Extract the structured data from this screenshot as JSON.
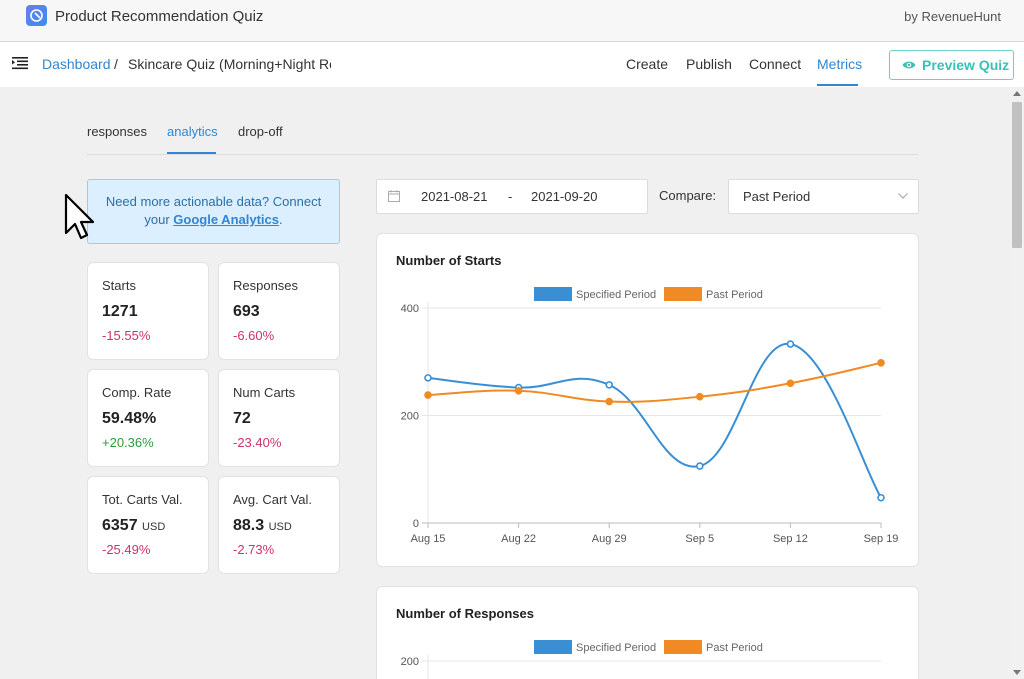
{
  "app": {
    "title": "Product Recommendation Quiz",
    "by": "by RevenueHunt"
  },
  "breadcrumb": {
    "root": "Dashboard",
    "separator": "/",
    "current": "Skincare Quiz (Morning+Night Routine)"
  },
  "nav": {
    "items": [
      {
        "label": "Create",
        "active": false
      },
      {
        "label": "Publish",
        "active": false
      },
      {
        "label": "Connect",
        "active": false
      },
      {
        "label": "Metrics",
        "active": true
      }
    ],
    "preview_label": "Preview Quiz"
  },
  "sub_tabs": [
    {
      "label": "responses",
      "active": false
    },
    {
      "label": "analytics",
      "active": true
    },
    {
      "label": "drop-off",
      "active": false
    }
  ],
  "ga_notice": {
    "text_before": "Need more actionable data? Connect your ",
    "link": "Google Analytics",
    "text_after": "."
  },
  "stats": [
    {
      "label": "Starts",
      "value": "1271",
      "unit": "",
      "change": "-15.55%",
      "trend": "negative"
    },
    {
      "label": "Responses",
      "value": "693",
      "unit": "",
      "change": "-6.60%",
      "trend": "negative"
    },
    {
      "label": "Comp. Rate",
      "value": "59.48%",
      "unit": "",
      "change": "+20.36%",
      "trend": "positive"
    },
    {
      "label": "Num Carts",
      "value": "72",
      "unit": "",
      "change": "-23.40%",
      "trend": "negative"
    },
    {
      "label": "Tot. Carts Val.",
      "value": "6357",
      "unit": "USD",
      "change": "-25.49%",
      "trend": "negative"
    },
    {
      "label": "Avg. Cart Val.",
      "value": "88.3",
      "unit": "USD",
      "change": "-2.73%",
      "trend": "negative"
    }
  ],
  "date_range": {
    "start": "2021-08-21",
    "separator": "-",
    "end": "2021-09-20"
  },
  "compare": {
    "label": "Compare:",
    "value": "Past Period"
  },
  "colors": {
    "accent": "#2f86d2",
    "preview": "#3cc0b5",
    "negative": "#d0306b",
    "positive": "#2e9b3a",
    "specified": "#3a8fd4",
    "past": "#f08a24"
  },
  "chart_data": [
    {
      "type": "line",
      "title": "Number of Starts",
      "x": [
        "Aug 15",
        "Aug 22",
        "Aug 29",
        "Sep 5",
        "Sep 12",
        "Sep 19"
      ],
      "ylim": [
        0,
        400
      ],
      "yticks": [
        0,
        200,
        400
      ],
      "legend_position": "top",
      "series": [
        {
          "name": "Specified Period",
          "values": [
            270,
            252,
            257,
            106,
            333,
            47
          ]
        },
        {
          "name": "Past Period",
          "values": [
            238,
            246,
            226,
            235,
            260,
            298
          ]
        }
      ]
    },
    {
      "type": "line",
      "title": "Number of Responses",
      "x": [],
      "ylim": [
        0,
        200
      ],
      "yticks": [
        200
      ],
      "legend_position": "top",
      "series": [
        {
          "name": "Specified Period",
          "values": []
        },
        {
          "name": "Past Period",
          "values": []
        }
      ]
    }
  ]
}
